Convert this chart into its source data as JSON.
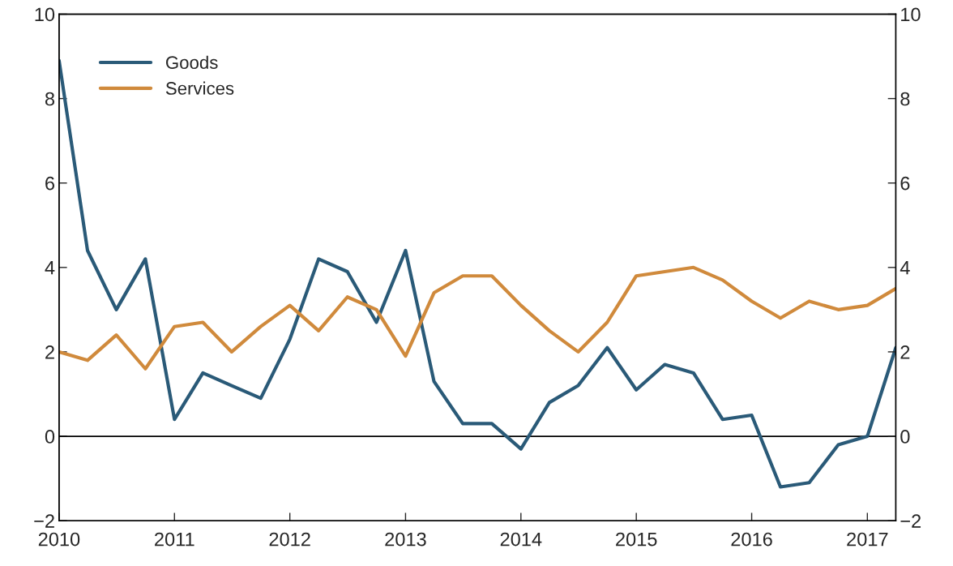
{
  "chart_data": {
    "type": "line",
    "x": [
      "2010-01",
      "2010-04",
      "2010-07",
      "2010-10",
      "2011-01",
      "2011-04",
      "2011-07",
      "2011-10",
      "2012-01",
      "2012-04",
      "2012-07",
      "2012-10",
      "2013-01",
      "2013-04",
      "2013-07",
      "2013-10",
      "2014-01",
      "2014-04",
      "2014-07",
      "2014-10",
      "2015-01",
      "2015-04",
      "2015-07",
      "2015-10",
      "2016-01",
      "2016-04",
      "2016-07",
      "2016-10",
      "2017-01",
      "2017-04"
    ],
    "series": [
      {
        "name": "Goods",
        "color": "#2a5a78",
        "values": [
          8.9,
          4.4,
          3.0,
          4.2,
          0.4,
          1.5,
          1.2,
          0.9,
          2.3,
          4.2,
          3.9,
          2.7,
          4.4,
          1.3,
          0.3,
          0.3,
          -0.3,
          0.8,
          1.2,
          2.1,
          1.1,
          1.7,
          1.5,
          0.4,
          0.5,
          -1.2,
          -1.1,
          -0.2,
          0.0,
          2.1
        ]
      },
      {
        "name": "Services",
        "color": "#d08a3c",
        "values": [
          2.0,
          1.8,
          2.4,
          1.6,
          2.6,
          2.7,
          2.0,
          2.6,
          3.1,
          2.5,
          3.3,
          3.0,
          1.9,
          3.4,
          3.8,
          3.8,
          3.1,
          2.5,
          2.0,
          2.7,
          3.8,
          3.9,
          4.0,
          3.7,
          3.2,
          2.8,
          3.2,
          3.0,
          3.1,
          3.5
        ]
      }
    ],
    "xlim": [
      "2010-01",
      "2017-04"
    ],
    "xticks": [
      "2010",
      "2011",
      "2012",
      "2013",
      "2014",
      "2015",
      "2016",
      "2017"
    ],
    "ylim": [
      -2,
      10
    ],
    "yticks": [
      {
        "value": -2,
        "label": "−2"
      },
      0,
      2,
      4,
      6,
      8,
      10
    ],
    "y2lim": [
      -2,
      10
    ],
    "y2ticks": [
      {
        "value": -2,
        "label": "−2"
      },
      0,
      2,
      4,
      6,
      8,
      10
    ],
    "ref_lines": [
      {
        "axis": "y",
        "value": 0,
        "color": "#000000",
        "line_style": "solid"
      }
    ],
    "legend": "top left",
    "grid": false,
    "line_style": "solid",
    "marker": "none"
  }
}
